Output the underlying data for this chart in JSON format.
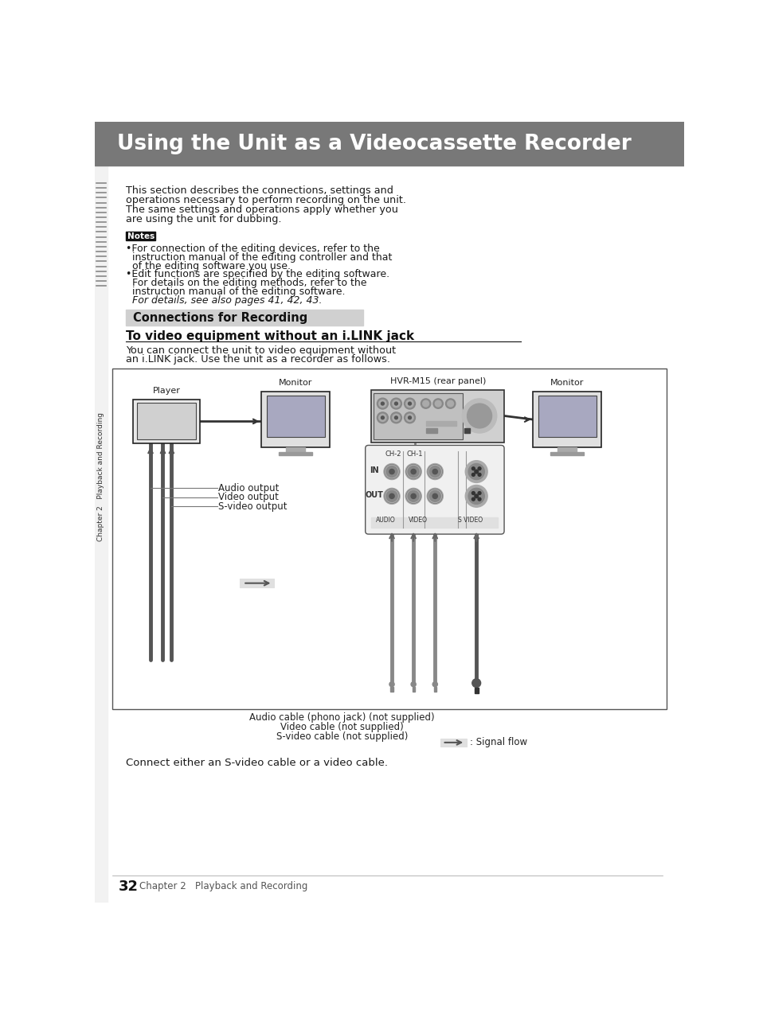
{
  "title": "Using the Unit as a Videocassette Recorder",
  "title_bg": "#787878",
  "title_color": "#ffffff",
  "title_fontsize": 19,
  "body_text1": "This section describes the connections, settings and",
  "body_text2": "operations necessary to perform recording on the unit.",
  "body_text3": "The same settings and operations apply whether you",
  "body_text4": "are using the unit for dubbing.",
  "notes_label": "Notes",
  "notes_bg": "#111111",
  "notes_color": "#ffffff",
  "note1_line1": "•For connection of the editing devices, refer to the",
  "note1_line2": "  instruction manual of the editing controller and that",
  "note1_line3": "  of the editing software you use.",
  "note2_line1": "•Edit functions are specified by the editing software.",
  "note2_line2": "  For details on the editing methods, refer to the",
  "note2_line3": "  instruction manual of the editing software.",
  "note2_line4": "  For details, see also pages 41, 42, 43.",
  "section_title": "Connections for Recording",
  "section_bg": "#d0d0d0",
  "subsection_title": "To video equipment without an i.LINK jack",
  "subsection_text1": "You can connect the unit to video equipment without",
  "subsection_text2": "an i.LINK jack. Use the unit as a recorder as follows.",
  "page_bg": "#ffffff",
  "sidebar_text": "Chapter 2   Playback and Recording",
  "page_number": "32",
  "page_footer_text": "Chapter 2   Playback and Recording",
  "bottom_text": "Connect either an S-video cable or a video cable.",
  "label_audio_output": "Audio output",
  "label_video_output": "Video output",
  "label_s_video_output": "S-video output",
  "label_audio_cable": "Audio cable (phono jack) (not supplied)",
  "label_video_cable": "Video cable (not supplied)",
  "label_s_video_cable": "S-video cable (not supplied)",
  "label_signal_flow": ": Signal flow",
  "label_player": "Player",
  "label_monitor1": "Monitor",
  "label_monitor2": "Monitor",
  "label_hvr": "HVR-M15 (rear panel)"
}
